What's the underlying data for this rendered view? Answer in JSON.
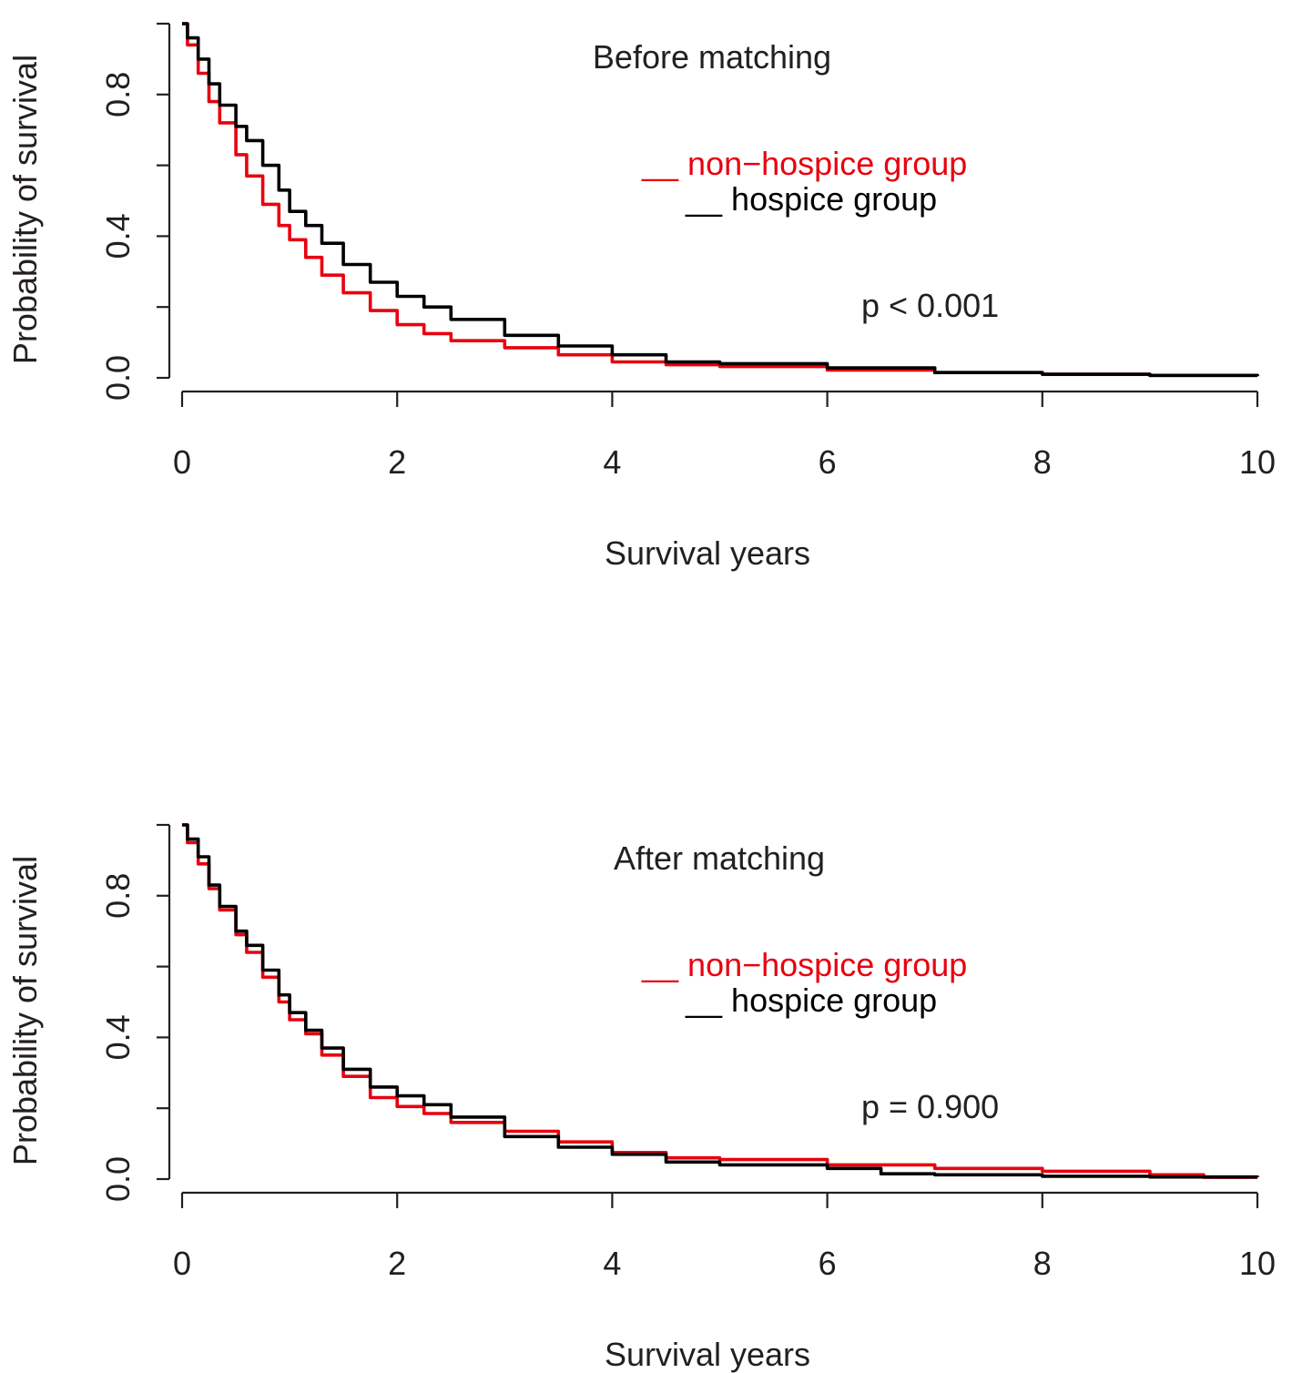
{
  "chart_data": [
    {
      "type": "line",
      "title": "Before matching",
      "xlabel": "Survival years",
      "ylabel": "Probability of survival",
      "xlim": [
        0,
        10
      ],
      "ylim": [
        0,
        1
      ],
      "x_ticks": [
        "0",
        "2",
        "4",
        "6",
        "8",
        "10"
      ],
      "y_ticks": [
        "0.0",
        "0.4",
        "0.8"
      ],
      "annotation": "p < 0.001",
      "legend": [
        {
          "text": "__ non−hospice group",
          "color": "#e8000f"
        },
        {
          "text": "__ hospice group",
          "color": "#000000"
        }
      ],
      "series": [
        {
          "name": "non−hospice group",
          "color": "#e8000f",
          "x": [
            0,
            0.05,
            0.15,
            0.25,
            0.35,
            0.5,
            0.6,
            0.75,
            0.9,
            1.0,
            1.15,
            1.3,
            1.5,
            1.75,
            2.0,
            2.25,
            2.5,
            3.0,
            3.5,
            4.0,
            4.5,
            5.0,
            6.0,
            7.0,
            8.0,
            9.0,
            10.0
          ],
          "y": [
            1.0,
            0.94,
            0.86,
            0.78,
            0.72,
            0.63,
            0.57,
            0.49,
            0.43,
            0.39,
            0.34,
            0.29,
            0.24,
            0.19,
            0.15,
            0.125,
            0.105,
            0.085,
            0.065,
            0.045,
            0.037,
            0.032,
            0.022,
            0.015,
            0.01,
            0.007,
            0.005
          ]
        },
        {
          "name": "hospice group",
          "color": "#000000",
          "x": [
            0,
            0.05,
            0.15,
            0.25,
            0.35,
            0.5,
            0.6,
            0.75,
            0.9,
            1.0,
            1.15,
            1.3,
            1.5,
            1.75,
            2.0,
            2.25,
            2.5,
            3.0,
            3.5,
            4.0,
            4.5,
            5.0,
            6.0,
            7.0,
            8.0,
            9.0,
            10.0
          ],
          "y": [
            1.0,
            0.96,
            0.9,
            0.83,
            0.77,
            0.71,
            0.67,
            0.6,
            0.53,
            0.47,
            0.43,
            0.38,
            0.32,
            0.27,
            0.23,
            0.2,
            0.165,
            0.12,
            0.09,
            0.065,
            0.045,
            0.04,
            0.028,
            0.015,
            0.01,
            0.007,
            0.005
          ]
        }
      ]
    },
    {
      "type": "line",
      "title": "After matching",
      "xlabel": "Survival years",
      "ylabel": "Probability of survival",
      "xlim": [
        0,
        10
      ],
      "ylim": [
        0,
        1
      ],
      "x_ticks": [
        "0",
        "2",
        "4",
        "6",
        "8",
        "10"
      ],
      "y_ticks": [
        "0.0",
        "0.4",
        "0.8"
      ],
      "annotation": "p = 0.900",
      "legend": [
        {
          "text": "__ non−hospice group",
          "color": "#e8000f"
        },
        {
          "text": "__ hospice group",
          "color": "#000000"
        }
      ],
      "series": [
        {
          "name": "non−hospice group",
          "color": "#e8000f",
          "x": [
            0,
            0.05,
            0.15,
            0.25,
            0.35,
            0.5,
            0.6,
            0.75,
            0.9,
            1.0,
            1.15,
            1.3,
            1.5,
            1.75,
            2.0,
            2.25,
            2.5,
            3.0,
            3.5,
            4.0,
            4.5,
            5.0,
            6.0,
            7.0,
            8.0,
            9.0,
            9.5,
            10.0
          ],
          "y": [
            1.0,
            0.95,
            0.89,
            0.82,
            0.76,
            0.69,
            0.64,
            0.57,
            0.5,
            0.45,
            0.41,
            0.35,
            0.29,
            0.23,
            0.205,
            0.185,
            0.16,
            0.135,
            0.105,
            0.075,
            0.06,
            0.055,
            0.04,
            0.03,
            0.022,
            0.012,
            0.005,
            0.005
          ]
        },
        {
          "name": "hospice group",
          "color": "#000000",
          "x": [
            0,
            0.05,
            0.15,
            0.25,
            0.35,
            0.5,
            0.6,
            0.75,
            0.9,
            1.0,
            1.15,
            1.3,
            1.5,
            1.75,
            2.0,
            2.25,
            2.5,
            3.0,
            3.5,
            4.0,
            4.5,
            5.0,
            6.0,
            6.5,
            7.0,
            8.0,
            9.0,
            10.0
          ],
          "y": [
            1.0,
            0.96,
            0.91,
            0.83,
            0.77,
            0.7,
            0.66,
            0.59,
            0.52,
            0.47,
            0.42,
            0.37,
            0.31,
            0.26,
            0.235,
            0.21,
            0.175,
            0.12,
            0.09,
            0.07,
            0.048,
            0.04,
            0.03,
            0.015,
            0.012,
            0.008,
            0.006,
            0.005
          ]
        }
      ]
    }
  ]
}
